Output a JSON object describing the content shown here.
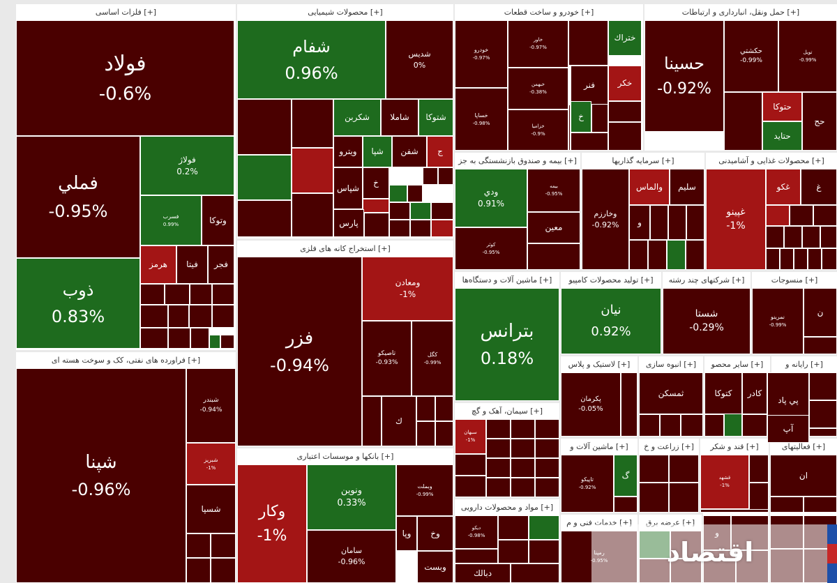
{
  "colors": {
    "down_strong": "#4a0000",
    "down": "#6b0a0a",
    "down_light": "#a31515",
    "up": "#1e6b1e",
    "neutral": "#5a0000"
  },
  "chart_data": {
    "type": "treemap",
    "unit": "%",
    "sectors": [
      {
        "id": "s1",
        "title": "[+] فلزات اساسی"
      },
      {
        "id": "s2",
        "title": "[+] محصولات شیمیایی"
      },
      {
        "id": "s3",
        "title": "[+] خودرو و ساخت قطعات"
      },
      {
        "id": "s4",
        "title": "[+] حمل ونقل، انبارداری و ارتباطات"
      },
      {
        "id": "s5",
        "title": "[+] فراورده های نفتی، کک و سوخت هسته ای"
      },
      {
        "id": "s6",
        "title": "[+] استخراج کانه های فلزی"
      },
      {
        "id": "s7",
        "title": "[+] بیمه و صندوق بازنشستگی به جز"
      },
      {
        "id": "s8",
        "title": "[+] سرمایه گذاریها"
      },
      {
        "id": "s9",
        "title": "[+] محصولات غذایی و آشامیدنی"
      },
      {
        "id": "s10",
        "title": "[+] ماشین آلات و دستگاه‌ها"
      },
      {
        "id": "s11",
        "title": "[+] تولید محصولات کامپیو"
      },
      {
        "id": "s12",
        "title": "[+] شرکتهای چند رشته"
      },
      {
        "id": "s13",
        "title": "[+] منسوجات"
      },
      {
        "id": "s14",
        "title": "[+] بانکها و موسسات اعتباری"
      },
      {
        "id": "s15",
        "title": "[+] لاستیک و پلاس"
      },
      {
        "id": "s16",
        "title": "[+] انبوه سازی"
      },
      {
        "id": "s17",
        "title": "[+] سایر محصو"
      },
      {
        "id": "s18",
        "title": "[+] رایانه و"
      },
      {
        "id": "s19",
        "title": "[+] سیمان، آهک و گچ"
      },
      {
        "id": "s20",
        "title": "[+] ماشین آلات و"
      },
      {
        "id": "s21",
        "title": "[+] زراعت و خ"
      },
      {
        "id": "s22",
        "title": "[+] قند و شکر"
      },
      {
        "id": "s23",
        "title": "[+] فعالیتهای"
      },
      {
        "id": "s24",
        "title": "[+] مواد و محصولات دارویی"
      },
      {
        "id": "s25",
        "title": "[+] خدمات فنی و م"
      },
      {
        "id": "s26",
        "title": "[+] عرضه برق"
      },
      {
        "id": "s27",
        "title": "[+] سایر وا"
      },
      {
        "id": "s28",
        "title": "[+] صاح"
      }
    ],
    "tiles": [
      {
        "sector": "s1",
        "name": "فولاد",
        "value": -0.6,
        "pct": "-0.6%",
        "color": "#4a0000"
      },
      {
        "sector": "s1",
        "name": "فملي",
        "value": -0.95,
        "pct": "-0.95%",
        "color": "#4a0000"
      },
      {
        "sector": "s1",
        "name": "ذوب",
        "value": 0.83,
        "pct": "0.83%",
        "color": "#1e6b1e"
      },
      {
        "sector": "s1",
        "name": "فولاژ",
        "value": 0.2,
        "pct": "0.2%",
        "color": "#1e6b1e"
      },
      {
        "sector": "s1",
        "name": "فسرب",
        "value": 0.99,
        "pct": "0.99%",
        "color": "#1e6b1e"
      },
      {
        "sector": "s1",
        "name": "وتوكا",
        "value": null,
        "pct": "",
        "color": "#4a0000"
      },
      {
        "sector": "s1",
        "name": "هرمز",
        "value": null,
        "pct": "",
        "color": "#a31515"
      },
      {
        "sector": "s1",
        "name": "فيتا",
        "value": null,
        "pct": "",
        "color": "#4a0000"
      },
      {
        "sector": "s1",
        "name": "فجر",
        "value": null,
        "pct": "",
        "color": "#4a0000"
      },
      {
        "sector": "s2",
        "name": "شفام",
        "value": 0.96,
        "pct": "0.96%",
        "color": "#1e6b1e"
      },
      {
        "sector": "s2",
        "name": "شديس",
        "value": 0,
        "pct": "0%",
        "color": "#4a0000"
      },
      {
        "sector": "s2",
        "name": "شكربن",
        "value": null,
        "pct": "",
        "color": "#1e6b1e"
      },
      {
        "sector": "s2",
        "name": "شاملا",
        "value": null,
        "pct": "",
        "color": "#4a0000"
      },
      {
        "sector": "s2",
        "name": "شتوكا",
        "value": null,
        "pct": "",
        "color": "#1e6b1e"
      },
      {
        "sector": "s2",
        "name": "ويترو",
        "value": null,
        "pct": "",
        "color": "#4a0000"
      },
      {
        "sector": "s2",
        "name": "شپا",
        "value": null,
        "pct": "",
        "color": "#1e6b1e"
      },
      {
        "sector": "s2",
        "name": "شفن",
        "value": null,
        "pct": "",
        "color": "#4a0000"
      },
      {
        "sector": "s2",
        "name": "پارس",
        "value": null,
        "pct": "",
        "color": "#4a0000"
      },
      {
        "sector": "s2",
        "name": "شپاس",
        "value": null,
        "pct": "",
        "color": "#4a0000"
      },
      {
        "sector": "s2",
        "name": "خ",
        "value": null,
        "pct": "",
        "color": "#4a0000"
      },
      {
        "sector": "s2",
        "name": "ج",
        "value": null,
        "pct": "",
        "color": "#a31515"
      },
      {
        "sector": "s3",
        "name": "ختراك",
        "value": null,
        "pct": "",
        "color": "#1e6b1e"
      },
      {
        "sector": "s3",
        "name": "خكر",
        "value": null,
        "pct": "",
        "color": "#a31515"
      },
      {
        "sector": "s3",
        "name": "فنر",
        "value": null,
        "pct": "",
        "color": "#4a0000"
      },
      {
        "sector": "s3",
        "name": "خ",
        "value": null,
        "pct": "",
        "color": "#1e6b1e"
      },
      {
        "sector": "s3",
        "name": "خودرو",
        "value": -0.97,
        "pct": "-0.97%",
        "color": "#4a0000"
      },
      {
        "sector": "s3",
        "name": "خاور",
        "value": -0.97,
        "pct": "-0.97%",
        "color": "#4a0000"
      },
      {
        "sector": "s3",
        "name": "خساپا",
        "value": -0.98,
        "pct": "-0.98%",
        "color": "#4a0000"
      },
      {
        "sector": "s3",
        "name": "خبهمن",
        "value": -0.38,
        "pct": "-0.38%",
        "color": "#4a0000"
      },
      {
        "sector": "s3",
        "name": "خزامیا",
        "value": -0.9,
        "pct": "-0.9%",
        "color": "#4a0000"
      },
      {
        "sector": "s4",
        "name": "حسينا",
        "value": -0.92,
        "pct": "-0.92%",
        "color": "#4a0000"
      },
      {
        "sector": "s4",
        "name": "حكشتي",
        "value": -0.99,
        "pct": "-0.99%",
        "color": "#4a0000"
      },
      {
        "sector": "s4",
        "name": "حتوكا",
        "value": null,
        "pct": "",
        "color": "#a31515"
      },
      {
        "sector": "s4",
        "name": "حتايد",
        "value": null,
        "pct": "",
        "color": "#1e6b1e"
      },
      {
        "sector": "s4",
        "name": "حج",
        "value": null,
        "pct": "",
        "color": "#4a0000"
      },
      {
        "sector": "s4",
        "name": "تويل",
        "value": -0.99,
        "pct": "-0.99%",
        "color": "#4a0000"
      },
      {
        "sector": "s5",
        "name": "شپنا",
        "value": -0.96,
        "pct": "-0.96%",
        "color": "#4a0000"
      },
      {
        "sector": "s5",
        "name": "شبندر",
        "value": -0.94,
        "pct": "-0.94%",
        "color": "#4a0000"
      },
      {
        "sector": "s5",
        "name": "شسپا",
        "value": null,
        "pct": "",
        "color": "#4a0000"
      },
      {
        "sector": "s5",
        "name": "شبريز",
        "value": -1,
        "pct": "-1%",
        "color": "#a31515"
      },
      {
        "sector": "s6",
        "name": "فزر",
        "value": -0.94,
        "pct": "-0.94%",
        "color": "#4a0000"
      },
      {
        "sector": "s6",
        "name": "ومعادن",
        "value": -1,
        "pct": "-1%",
        "color": "#a31515"
      },
      {
        "sector": "s6",
        "name": "تاصيكو",
        "value": -0.93,
        "pct": "-0.93%",
        "color": "#4a0000"
      },
      {
        "sector": "s6",
        "name": "كگل",
        "value": -0.99,
        "pct": "-0.99%",
        "color": "#4a0000"
      },
      {
        "sector": "s6",
        "name": "ك",
        "value": null,
        "pct": "",
        "color": "#4a0000"
      },
      {
        "sector": "s7",
        "name": "ودي",
        "value": 0.91,
        "pct": "0.91%",
        "color": "#1e6b1e"
      },
      {
        "sector": "s7",
        "name": "معين",
        "value": null,
        "pct": "",
        "color": "#4a0000"
      },
      {
        "sector": "s7",
        "name": "كوثر",
        "value": -0.95,
        "pct": "-0.95%",
        "color": "#4a0000"
      },
      {
        "sector": "s7",
        "name": "بيمه",
        "value": -0.95,
        "pct": "-0.95%",
        "color": "#4a0000"
      },
      {
        "sector": "s8",
        "name": "سليم",
        "value": null,
        "pct": "",
        "color": "#4a0000"
      },
      {
        "sector": "s8",
        "name": "والماس",
        "value": null,
        "pct": "",
        "color": "#a31515"
      },
      {
        "sector": "s8",
        "name": "وخارزم",
        "value": -0.92,
        "pct": "-0.92%",
        "color": "#4a0000"
      },
      {
        "sector": "s8",
        "name": "و",
        "value": null,
        "pct": "",
        "color": "#4a0000"
      },
      {
        "sector": "s9",
        "name": "غپينو",
        "value": -1,
        "pct": "-1%",
        "color": "#a31515"
      },
      {
        "sector": "s9",
        "name": "غكو",
        "value": null,
        "pct": "",
        "color": "#a31515"
      },
      {
        "sector": "s9",
        "name": "غ",
        "value": null,
        "pct": "",
        "color": "#4a0000"
      },
      {
        "sector": "s10",
        "name": "بترانس",
        "value": 0.18,
        "pct": "0.18%",
        "color": "#1e6b1e"
      },
      {
        "sector": "s11",
        "name": "نيان",
        "value": 0.92,
        "pct": "0.92%",
        "color": "#1e6b1e"
      },
      {
        "sector": "s12",
        "name": "شستا",
        "value": -0.29,
        "pct": "-0.29%",
        "color": "#4a0000"
      },
      {
        "sector": "s13",
        "name": "نمرينو",
        "value": -0.99,
        "pct": "-0.99%",
        "color": "#4a0000"
      },
      {
        "sector": "s13",
        "name": "ن",
        "value": null,
        "pct": "",
        "color": "#4a0000"
      },
      {
        "sector": "s14",
        "name": "وكار",
        "value": -1,
        "pct": "-1%",
        "color": "#a31515"
      },
      {
        "sector": "s14",
        "name": "ونوين",
        "value": 0.33,
        "pct": "0.33%",
        "color": "#1e6b1e"
      },
      {
        "sector": "s14",
        "name": "وبملت",
        "value": -0.99,
        "pct": "-0.99%",
        "color": "#4a0000"
      },
      {
        "sector": "s14",
        "name": "سامان",
        "value": -0.96,
        "pct": "-0.96%",
        "color": "#4a0000"
      },
      {
        "sector": "s14",
        "name": "وپا",
        "value": null,
        "pct": "",
        "color": "#4a0000"
      },
      {
        "sector": "s14",
        "name": "وخ",
        "value": null,
        "pct": "",
        "color": "#4a0000"
      },
      {
        "sector": "s14",
        "name": "وبست",
        "value": null,
        "pct": "",
        "color": "#4a0000"
      },
      {
        "sector": "s15",
        "name": "پكرمان",
        "value": -0.05,
        "pct": "-0.05%",
        "color": "#4a0000"
      },
      {
        "sector": "s16",
        "name": "ثمسكن",
        "value": null,
        "pct": "",
        "color": "#4a0000"
      },
      {
        "sector": "s17",
        "name": "كتوكا",
        "value": null,
        "pct": "",
        "color": "#4a0000"
      },
      {
        "sector": "s18",
        "name": "كادر",
        "value": null,
        "pct": "",
        "color": "#4a0000"
      },
      {
        "sector": "s18",
        "name": "پي پاد",
        "value": null,
        "pct": "",
        "color": "#4a0000"
      },
      {
        "sector": "s18",
        "name": "آپ",
        "value": null,
        "pct": "",
        "color": "#4a0000"
      },
      {
        "sector": "s19",
        "name": "سبهان",
        "value": -1,
        "pct": "-1%",
        "color": "#a31515"
      },
      {
        "sector": "s20",
        "name": "تاپيكو",
        "value": -0.92,
        "pct": "-0.92%",
        "color": "#4a0000"
      },
      {
        "sector": "s20",
        "name": "گ",
        "value": null,
        "pct": "",
        "color": "#1e6b1e"
      },
      {
        "sector": "s22",
        "name": "قشهد",
        "value": -1,
        "pct": "-1%",
        "color": "#a31515"
      },
      {
        "sector": "s23",
        "name": "ان",
        "value": null,
        "pct": "",
        "color": "#4a0000"
      },
      {
        "sector": "s24",
        "name": "ديكو",
        "value": -0.98,
        "pct": "-0.98%",
        "color": "#4a0000"
      },
      {
        "sector": "s24",
        "name": "دبالك",
        "value": null,
        "pct": "",
        "color": "#4a0000"
      },
      {
        "sector": "s25",
        "name": "رمپنا",
        "value": -0.95,
        "pct": "-0.95%",
        "color": "#4a0000"
      },
      {
        "sector": "s27",
        "name": "و",
        "value": null,
        "pct": "",
        "color": "#4a0000"
      }
    ]
  },
  "watermark": {
    "text": "اقتصاد"
  }
}
